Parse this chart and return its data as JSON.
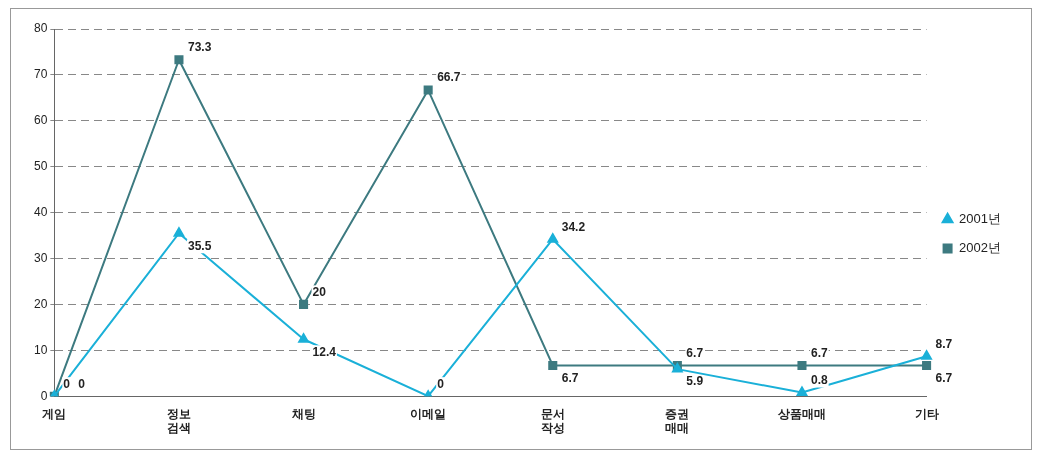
{
  "chart_data": {
    "type": "line",
    "categories": [
      [
        "게임"
      ],
      [
        "정보",
        "검색"
      ],
      [
        "채팅"
      ],
      [
        "이메일"
      ],
      [
        "문서",
        "작성"
      ],
      [
        "증권",
        "매매"
      ],
      [
        "상품매매"
      ],
      [
        "기타"
      ]
    ],
    "series": [
      {
        "name": "2001년",
        "color": "#1ab0d8",
        "marker": "triangle",
        "values": [
          0,
          35.5,
          12.4,
          0,
          34.2,
          5.9,
          0.8,
          8.7
        ]
      },
      {
        "name": "2002년",
        "color": "#3d7a80",
        "marker": "square",
        "values": [
          0,
          73.3,
          20,
          66.7,
          6.7,
          6.7,
          6.7,
          6.7
        ]
      }
    ],
    "ylim": [
      0,
      80
    ],
    "yticks": [
      0,
      10,
      20,
      30,
      40,
      50,
      60,
      70,
      80
    ],
    "grid": "y",
    "legend": "right",
    "data_labels": true
  }
}
